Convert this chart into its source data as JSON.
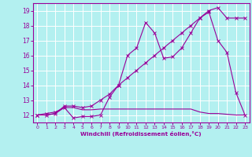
{
  "background_color": "#b3f0f0",
  "grid_color": "#ffffff",
  "line_color": "#990099",
  "xlabel": "Windchill (Refroidissement éolien,°C)",
  "xlim": [
    -0.5,
    23.5
  ],
  "ylim": [
    11.5,
    19.5
  ],
  "yticks": [
    12,
    13,
    14,
    15,
    16,
    17,
    18,
    19
  ],
  "xticks": [
    0,
    1,
    2,
    3,
    4,
    5,
    6,
    7,
    8,
    9,
    10,
    11,
    12,
    13,
    14,
    15,
    16,
    17,
    18,
    19,
    20,
    21,
    22,
    23
  ],
  "line1_x": [
    0,
    1,
    2,
    3,
    4,
    5,
    6,
    7,
    8,
    9,
    10,
    11,
    12,
    13,
    14,
    15,
    16,
    17,
    18,
    19,
    20,
    21,
    22,
    23
  ],
  "line1_y": [
    12.0,
    12.1,
    12.2,
    12.5,
    11.8,
    11.9,
    11.9,
    12.0,
    13.2,
    14.0,
    16.0,
    16.5,
    18.2,
    17.5,
    15.8,
    15.9,
    16.5,
    17.5,
    18.5,
    19.0,
    19.2,
    18.5,
    18.5,
    18.5
  ],
  "line2_x": [
    0,
    1,
    2,
    3,
    4,
    5,
    6,
    7,
    8,
    9,
    10,
    11,
    12,
    13,
    14,
    15,
    16,
    17,
    18,
    19,
    20,
    21,
    22,
    23
  ],
  "line2_y": [
    12.0,
    12.0,
    12.1,
    12.5,
    12.5,
    12.35,
    12.35,
    12.4,
    12.4,
    12.4,
    12.4,
    12.4,
    12.4,
    12.4,
    12.4,
    12.4,
    12.4,
    12.4,
    12.2,
    12.1,
    12.1,
    12.05,
    12.0,
    12.0
  ],
  "line3_x": [
    0,
    1,
    2,
    3,
    4,
    5,
    6,
    7,
    8,
    9,
    10,
    11,
    12,
    13,
    14,
    15,
    16,
    17,
    18,
    19,
    20,
    21,
    22,
    23
  ],
  "line3_y": [
    12.0,
    12.0,
    12.1,
    12.6,
    12.6,
    12.5,
    12.6,
    13.0,
    13.4,
    14.0,
    14.5,
    15.0,
    15.5,
    16.0,
    16.5,
    17.0,
    17.5,
    18.0,
    18.5,
    18.9,
    17.0,
    16.2,
    13.5,
    12.0
  ]
}
